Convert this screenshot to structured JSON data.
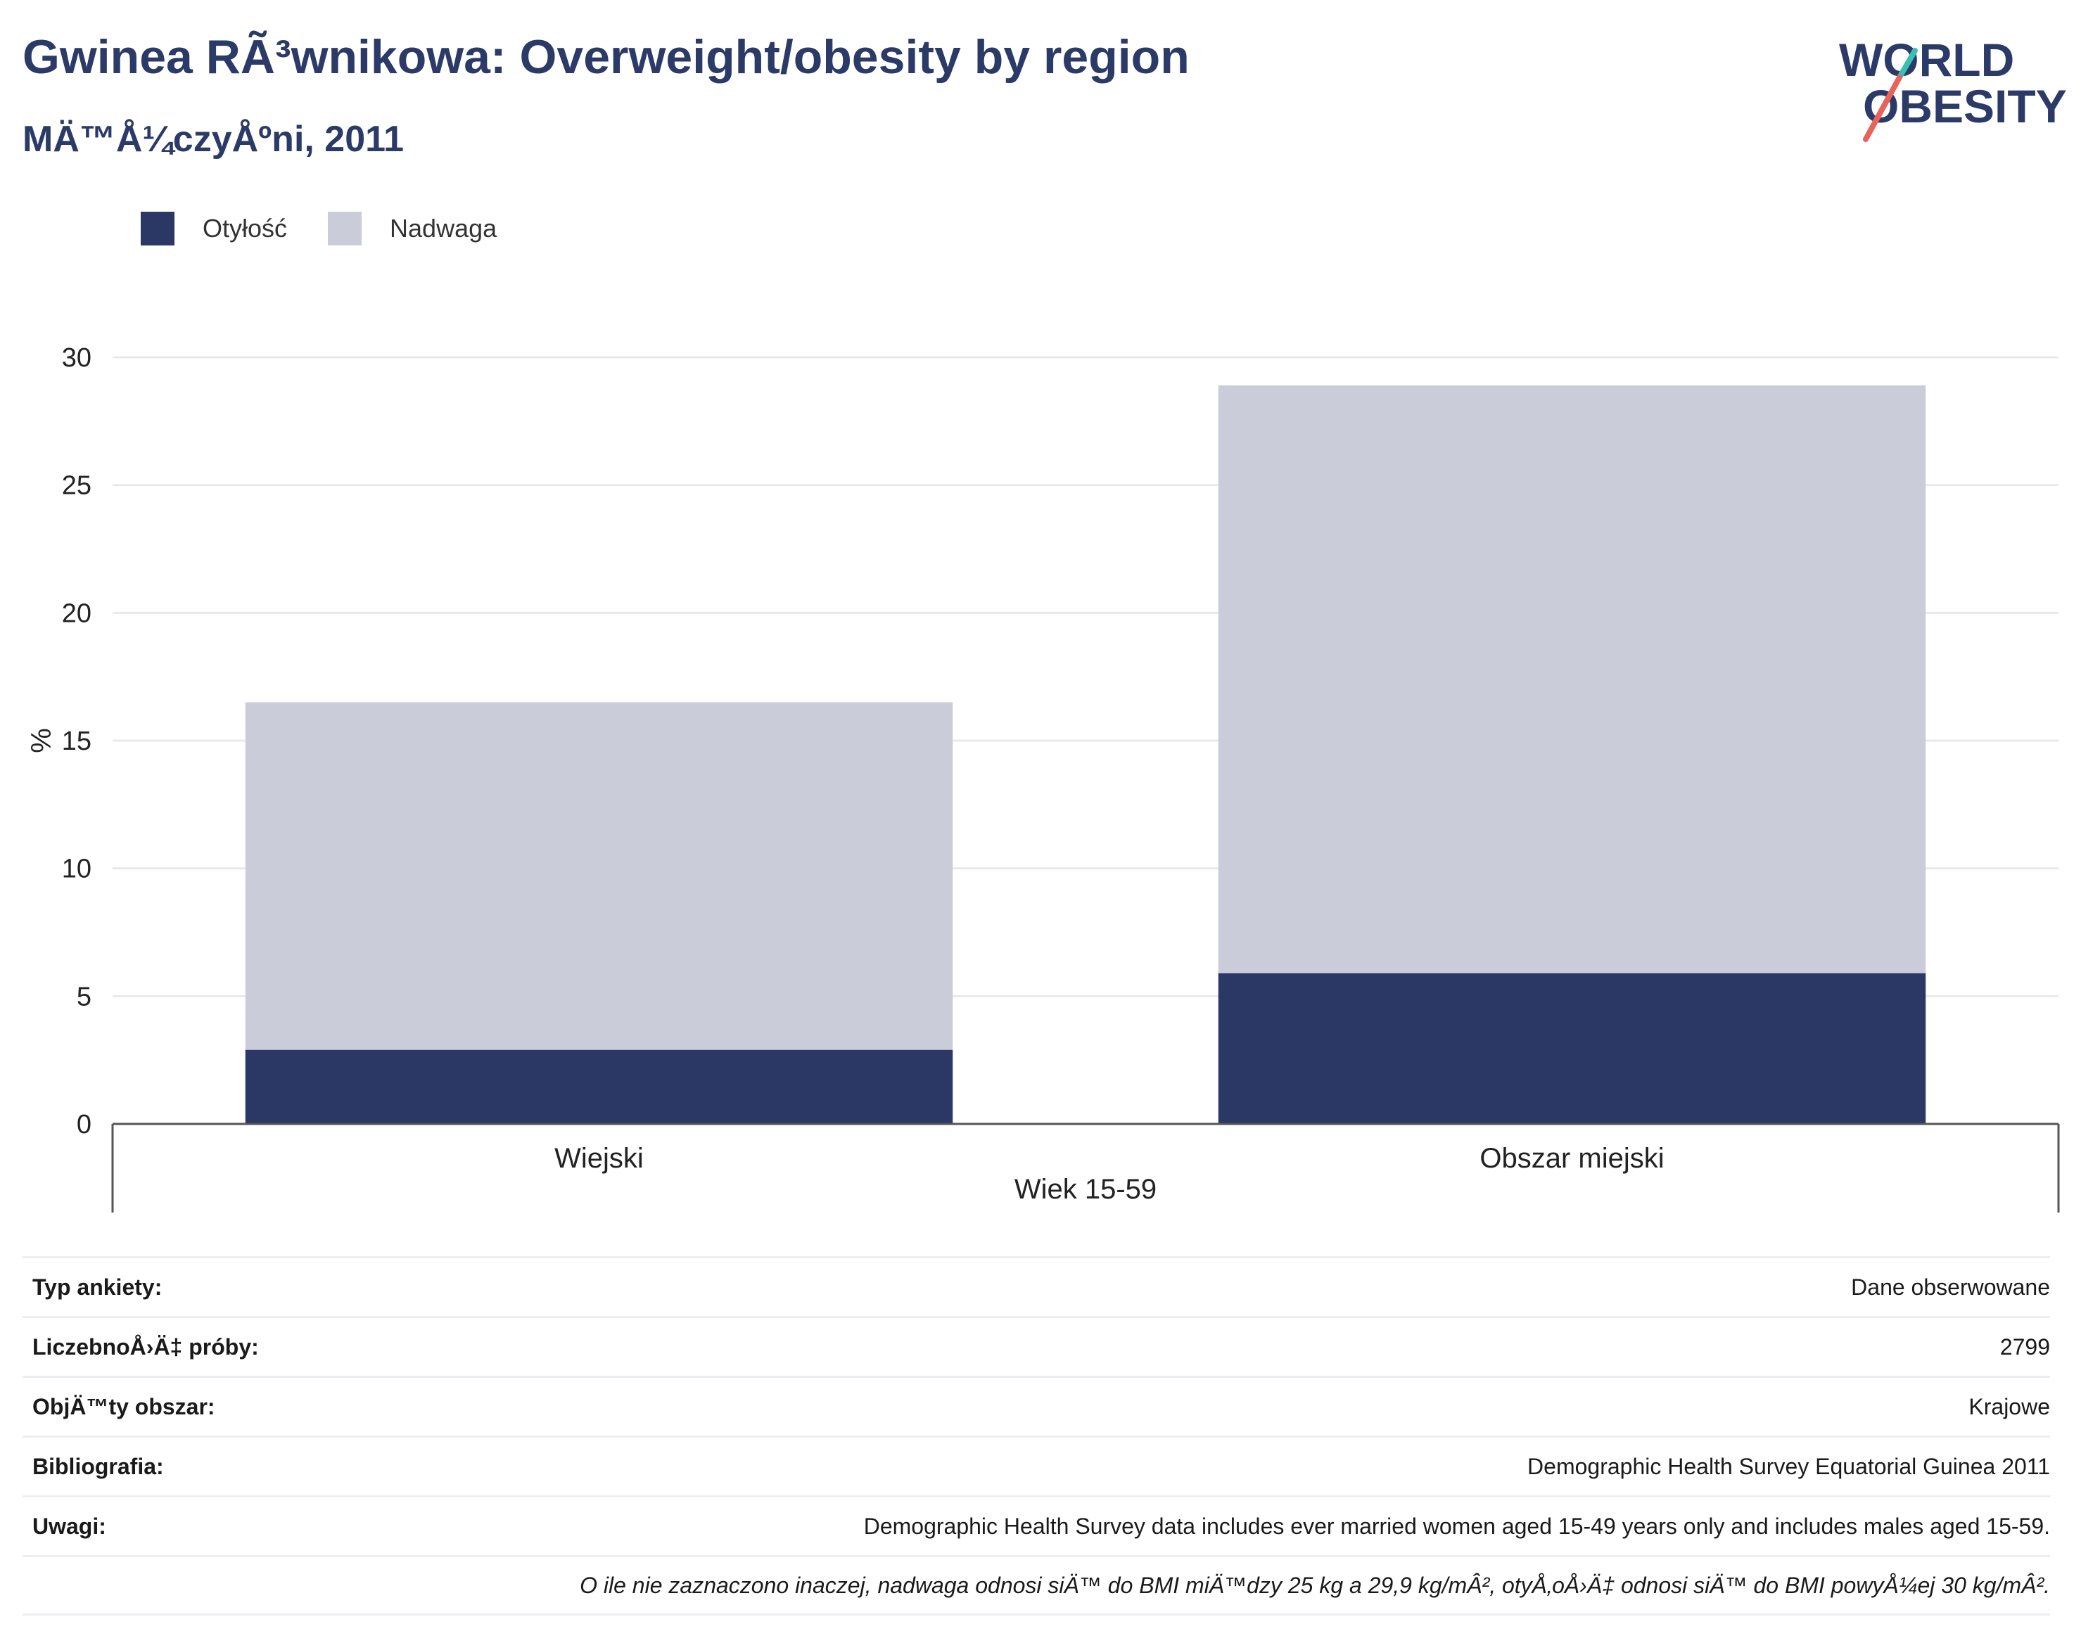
{
  "header": {
    "title": "Gwinea RÃ³wnikowa: Overweight/obesity by region",
    "subtitle": "MÄ™Å¼czyÅºni, 2011"
  },
  "logo": {
    "line1": "WORLD",
    "line2": "OBESITY",
    "colors": {
      "text": "#2b3a67",
      "slash_top": "#3bbfb2",
      "slash_bottom": "#e8645a"
    }
  },
  "legend": [
    {
      "label": "Otyłość",
      "color": "#2b3764"
    },
    {
      "label": "Nadwaga",
      "color": "#cacdd9"
    }
  ],
  "chart_data": {
    "type": "bar",
    "stacked": true,
    "categories": [
      "Wiejski",
      "Obszar miejski"
    ],
    "group_label": "Wiek 15-59",
    "series": [
      {
        "name": "Otyłość",
        "color": "#2b3764",
        "values": [
          2.9,
          5.9
        ]
      },
      {
        "name": "Nadwaga",
        "color": "#cacdd9",
        "values": [
          13.6,
          23.0
        ]
      }
    ],
    "ylabel": "%",
    "ylim": [
      0,
      30
    ],
    "yticks": [
      "0",
      "5",
      "10",
      "15",
      "20",
      "25",
      "30"
    ],
    "grid": true,
    "legend_position": "top-left"
  },
  "meta": {
    "rows": [
      {
        "key": "Typ ankiety:",
        "value": "Dane obserwowane"
      },
      {
        "key": "LiczebnoÅ›Ä‡ próby:",
        "value": "2799"
      },
      {
        "key": "ObjÄ™ty obszar:",
        "value": "Krajowe"
      },
      {
        "key": "Bibliografia:",
        "value": "Demographic Health Survey Equatorial Guinea 2011"
      },
      {
        "key": "Uwagi:",
        "value": "Demographic Health Survey data includes ever married women aged 15-49 years only and includes males aged 15-59."
      }
    ],
    "note": "O ile nie zaznaczono inaczej, nadwaga odnosi siÄ™ do BMI miÄ™dzy 25 kg a 29,9 kg/mÂ², otyÅ‚oÅ›Ä‡ odnosi siÄ™ do BMI powyÅ¼ej 30 kg/mÂ²."
  }
}
